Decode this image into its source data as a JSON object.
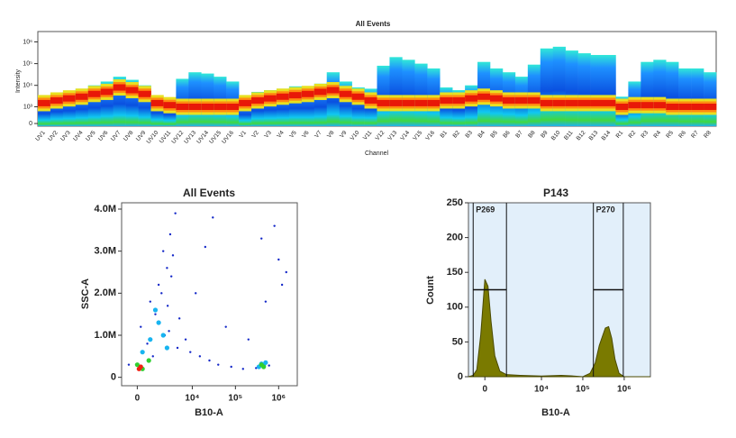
{
  "chart_data": [
    {
      "type": "spectrum",
      "title": "All Events",
      "ylabel": "Intensity",
      "xlabel": "Channel",
      "categories": [
        "UV1",
        "UV2",
        "UV3",
        "UV4",
        "UV5",
        "UV6",
        "UV7",
        "UV8",
        "UV9",
        "UV10",
        "UV11",
        "UV12",
        "UV13",
        "UV14",
        "UV15",
        "UV16",
        "V1",
        "V2",
        "V3",
        "V4",
        "V5",
        "V6",
        "V7",
        "V8",
        "V9",
        "V10",
        "V11",
        "V12",
        "V13",
        "V14",
        "V15",
        "V16",
        "B1",
        "B2",
        "B3",
        "B4",
        "B5",
        "B6",
        "B7",
        "B8",
        "B9",
        "B10",
        "B11",
        "B12",
        "B13",
        "B14",
        "R1",
        "R2",
        "R3",
        "R4",
        "R5",
        "R6",
        "R7",
        "R8"
      ],
      "values": [
        1500,
        2000,
        2500,
        3000,
        4000,
        5000,
        8000,
        6000,
        4000,
        1500,
        1200,
        1000,
        1000,
        1000,
        1000,
        1000,
        1500,
        2000,
        2500,
        3000,
        3500,
        4000,
        5000,
        6000,
        4000,
        3000,
        2000,
        1500,
        1500,
        1500,
        1500,
        1500,
        2000,
        2000,
        2500,
        3000,
        2500,
        2000,
        2000,
        2000,
        1500,
        1500,
        1500,
        1500,
        1500,
        1500,
        1000,
        1200,
        1200,
        1200,
        1000,
        1000,
        1000,
        1000
      ],
      "high": [
        2500,
        4000,
        5000,
        7000,
        10000,
        15000,
        25000,
        18000,
        10000,
        3000,
        2000,
        20000,
        40000,
        35000,
        25000,
        15000,
        2000,
        5000,
        6000,
        7000,
        9000,
        9000,
        12000,
        40000,
        15000,
        8000,
        7000,
        80000,
        200000,
        150000,
        100000,
        60000,
        8000,
        6000,
        10000,
        120000,
        60000,
        40000,
        25000,
        90000,
        500000,
        600000,
        400000,
        300000,
        250000,
        250000,
        3000,
        15000,
        120000,
        150000,
        120000,
        60000,
        60000,
        40000
      ],
      "yscale": "biexponential",
      "ylim": [
        -100,
        3000000
      ],
      "yticks": [
        0,
        {
          "value": 1000,
          "label": "10³"
        },
        {
          "value": 10000,
          "label": "10⁴"
        },
        {
          "value": 100000,
          "label": "10⁵"
        },
        {
          "value": 1000000,
          "label": "10⁶"
        }
      ]
    },
    {
      "type": "scatter",
      "title": "All Events",
      "xlabel": "B10-A",
      "ylabel": "SSC-A",
      "xscale": "biexponential",
      "xlim": [
        -1000,
        2700000
      ],
      "xticks": [
        0,
        {
          "value": 10000,
          "label": "10⁴"
        },
        {
          "value": 100000,
          "label": "10⁵"
        },
        {
          "value": 1000000,
          "label": "10⁶"
        }
      ],
      "ylim": [
        -200000,
        4150000
      ],
      "yticks": [
        0,
        {
          "value": 1000000,
          "label": "1.0M"
        },
        {
          "value": 2000000,
          "label": "2.0M"
        },
        {
          "value": 3000000,
          "label": "3.0M"
        },
        {
          "value": 4000000,
          "label": "4.0M"
        }
      ],
      "series": [
        {
          "color": "#1428c8",
          "x": [
            -500,
            200,
            800,
            1500,
            2500,
            3000,
            4000,
            1200,
            1800,
            2200,
            600,
            3500,
            5000,
            7000,
            9000,
            15000,
            25000,
            40000,
            80000,
            150000,
            300000,
            600000,
            1000000,
            1500000,
            2000,
            2600,
            1000,
            3200,
            500000,
            800000,
            1200000,
            60000,
            20000,
            12000,
            30000,
            4500,
            2800,
            1600,
            200000,
            400000
          ],
          "y": [
            300000,
            1200000,
            1800000,
            2200000,
            2600000,
            3400000,
            3900000,
            1500000,
            2000000,
            1000000,
            800000,
            2900000,
            1400000,
            900000,
            600000,
            500000,
            400000,
            300000,
            250000,
            200000,
            220000,
            280000,
            2800000,
            2500000,
            3000000,
            1700000,
            500000,
            2400000,
            1800000,
            3600000,
            2200000,
            1200000,
            3100000,
            2000000,
            3800000,
            700000,
            1100000,
            1300000,
            900000,
            3300000
          ]
        },
        {
          "color": "#18b4f0",
          "x": [
            300,
            800,
            1500,
            2000,
            1200,
            350000,
            400000,
            450000,
            500000,
            2500
          ],
          "y": [
            600000,
            900000,
            1300000,
            1000000,
            1600000,
            250000,
            320000,
            280000,
            350000,
            700000
          ]
        },
        {
          "color": "#30d030",
          "x": [
            0,
            300,
            400000,
            450000,
            700
          ],
          "y": [
            300000,
            200000,
            300000,
            250000,
            400000
          ]
        },
        {
          "color": "#f02010",
          "x": [
            100,
            200
          ],
          "y": [
            200000,
            250000
          ]
        }
      ]
    },
    {
      "type": "histogram",
      "title": "P143",
      "xlabel": "B10-A",
      "ylabel": "Count",
      "color": "#7a7a00",
      "xscale": "biexponential",
      "xlim": [
        -900,
        4300000
      ],
      "xticks": [
        0,
        {
          "value": 10000,
          "label": "10⁴"
        },
        {
          "value": 100000,
          "label": "10⁵"
        },
        {
          "value": 1000000,
          "label": "10⁶"
        }
      ],
      "ylim": [
        0,
        250
      ],
      "yticks": [
        0,
        50,
        100,
        150,
        200,
        250
      ],
      "x": [
        -900,
        -600,
        -400,
        -200,
        0,
        150,
        300,
        500,
        800,
        1300,
        3000,
        10000,
        30000,
        60000,
        100000,
        150000,
        200000,
        250000,
        350000,
        420000,
        500000,
        600000,
        750000,
        1000000,
        4300000
      ],
      "values": [
        0,
        2,
        10,
        60,
        140,
        130,
        80,
        30,
        8,
        3,
        2,
        1,
        2,
        1,
        0,
        5,
        20,
        45,
        70,
        72,
        55,
        25,
        5,
        0,
        0
      ],
      "gates": [
        {
          "name": "P269",
          "xlim": [
            -600,
            1300
          ],
          "y": 125
        },
        {
          "name": "P270",
          "xlim": [
            180000,
            950000
          ],
          "y": 125
        }
      ]
    }
  ]
}
